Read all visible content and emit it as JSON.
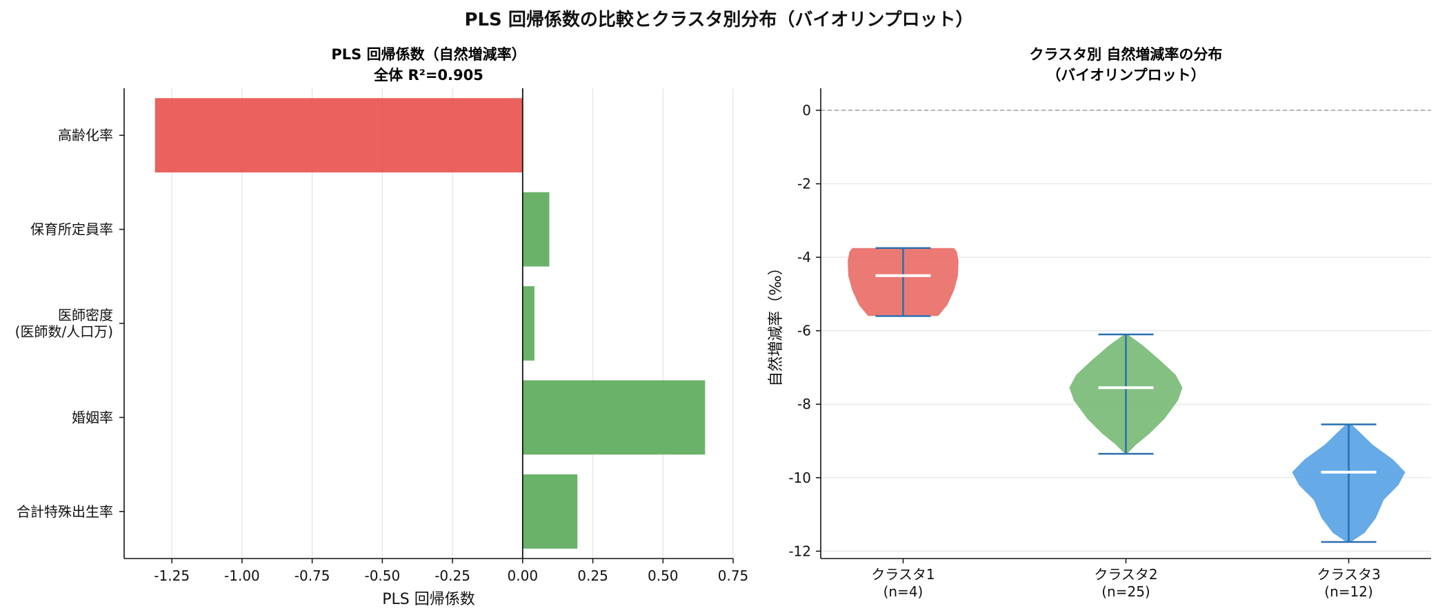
{
  "figure": {
    "title": "PLS 回帰係数の比較とクラスタ別分布（バイオリンプロット）"
  },
  "chart_data": [
    {
      "type": "bar",
      "orientation": "horizontal",
      "title": "PLS 回帰係数（自然増減率）",
      "subtitle": "全体 R²=0.905",
      "xlabel": "PLS 回帰係数",
      "ylabel": "",
      "categories": [
        [
          "高齢化率"
        ],
        [
          "保育所定員率"
        ],
        [
          "医師密度",
          "(医師数/人口万)"
        ],
        [
          "婚姻率"
        ],
        [
          "合計特殊出生率"
        ]
      ],
      "values": [
        -1.31,
        0.095,
        0.042,
        0.65,
        0.195
      ],
      "xlim": [
        -1.42,
        0.75
      ],
      "xticks": [
        "-1.25",
        "-1.00",
        "-0.75",
        "-0.50",
        "-0.25",
        "0.00",
        "0.25",
        "0.50",
        "0.75"
      ],
      "xtick_values": [
        -1.25,
        -1.0,
        -0.75,
        -0.5,
        -0.25,
        0.0,
        0.25,
        0.5,
        0.75
      ],
      "grid": "x",
      "colors": {
        "negative": "#e8504b",
        "positive": "#5aaa5a"
      }
    },
    {
      "type": "violin",
      "title": "クラスタ別 自然増減率の分布",
      "subtitle": "（バイオリンプロット）",
      "xlabel": "",
      "ylabel": "自然増減率（‰）",
      "ylim": [
        -12.2,
        0.6
      ],
      "yticks": [
        "0",
        "-2",
        "-4",
        "-6",
        "-8",
        "-10",
        "-12"
      ],
      "ytick_values": [
        0,
        -2,
        -4,
        -6,
        -8,
        -10,
        -12
      ],
      "reference_line": 0,
      "grid": "y",
      "categories": [
        {
          "name": "クラスタ1",
          "n": "(n=4)",
          "min": -5.6,
          "max": -3.75,
          "median": -4.5,
          "color": "#e8615c",
          "profile": [
            [
              -5.6,
              0.62
            ],
            [
              -5.3,
              0.78
            ],
            [
              -4.9,
              0.9
            ],
            [
              -4.5,
              0.97
            ],
            [
              -4.1,
              0.98
            ],
            [
              -3.85,
              0.95
            ],
            [
              -3.75,
              0.9
            ]
          ]
        },
        {
          "name": "クラスタ2",
          "n": "(n=25)",
          "min": -9.35,
          "max": -6.1,
          "median": -7.55,
          "color": "#6db56c",
          "profile": [
            [
              -9.35,
              0.02
            ],
            [
              -9.1,
              0.18
            ],
            [
              -8.8,
              0.42
            ],
            [
              -8.4,
              0.68
            ],
            [
              -7.9,
              0.92
            ],
            [
              -7.55,
              1.0
            ],
            [
              -7.2,
              0.88
            ],
            [
              -6.8,
              0.6
            ],
            [
              -6.4,
              0.3
            ],
            [
              -6.1,
              0.03
            ]
          ]
        },
        {
          "name": "クラスタ3",
          "n": "(n=12)",
          "min": -11.75,
          "max": -8.55,
          "median": -9.85,
          "color": "#4b9be3",
          "profile": [
            [
              -11.75,
              0.04
            ],
            [
              -11.5,
              0.28
            ],
            [
              -11.1,
              0.48
            ],
            [
              -10.6,
              0.62
            ],
            [
              -10.2,
              0.88
            ],
            [
              -9.85,
              1.0
            ],
            [
              -9.5,
              0.78
            ],
            [
              -9.1,
              0.42
            ],
            [
              -8.8,
              0.22
            ],
            [
              -8.55,
              0.05
            ]
          ]
        }
      ]
    }
  ]
}
